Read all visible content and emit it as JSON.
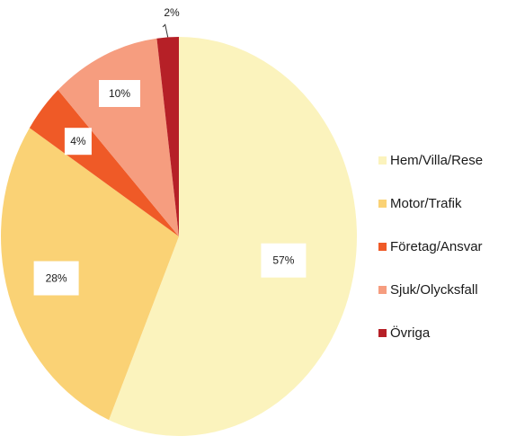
{
  "chart_data": {
    "type": "pie",
    "title": "",
    "legend_position": "right",
    "slices": [
      {
        "name": "Hem/Villa/Rese",
        "value": 57,
        "label": "57%",
        "color": "#FBF3BD"
      },
      {
        "name": "Motor/Trafik",
        "value": 28,
        "label": "28%",
        "color": "#FAD275"
      },
      {
        "name": "Företag/Ansvar",
        "value": 4,
        "label": "4%",
        "color": "#EF5A27"
      },
      {
        "name": "Sjuk/Olycksfall",
        "value": 10,
        "label": "10%",
        "color": "#F69D7F"
      },
      {
        "name": "Övriga",
        "value": 2,
        "label": "2%",
        "color": "#B62027"
      }
    ]
  }
}
